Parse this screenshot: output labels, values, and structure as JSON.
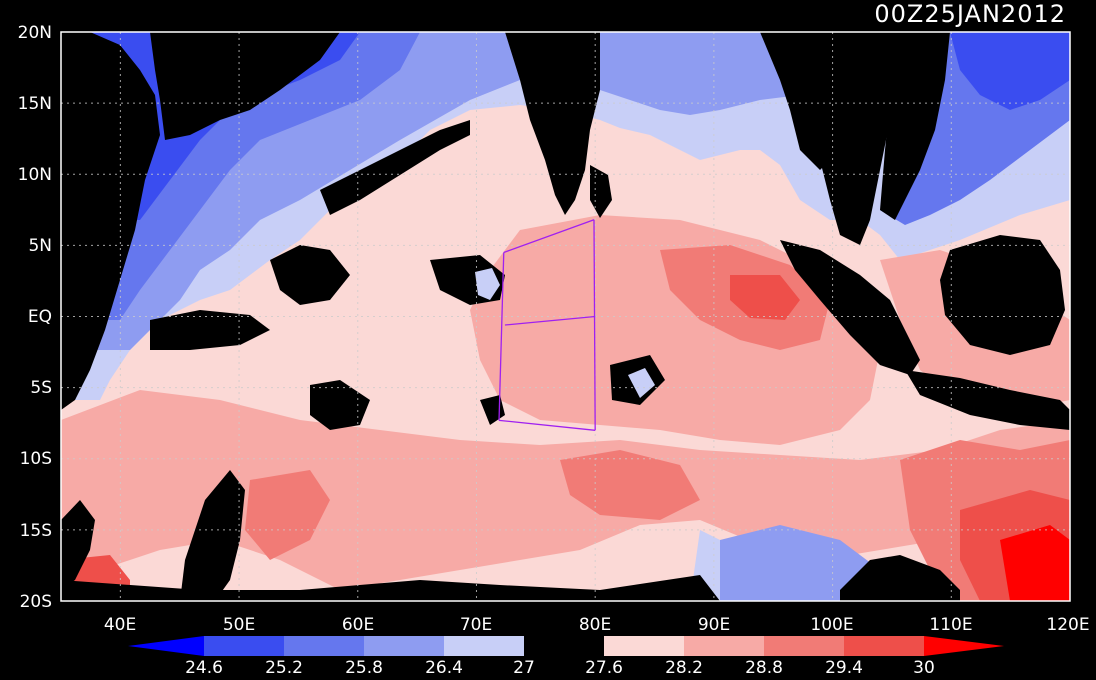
{
  "title": "00Z25JAN2012",
  "lat_labels": [
    "20N",
    "15N",
    "10N",
    "5N",
    "EQ",
    "5S",
    "10S",
    "15S",
    "20S"
  ],
  "lon_labels": [
    "40E",
    "50E",
    "60E",
    "70E",
    "80E",
    "90E",
    "100E",
    "110E",
    "120E"
  ],
  "colorbar": {
    "labels": [
      "24.6",
      "25.2",
      "25.8",
      "26.4",
      "27",
      "27.6",
      "28.2",
      "28.8",
      "29.4",
      "30"
    ],
    "colors": [
      "#0000ff",
      "#3a4df0",
      "#6577ee",
      "#8e9cf1",
      "#c8cff7",
      "#000000",
      "#fbd9d6",
      "#f7aaa6",
      "#f17b76",
      "#ee4f4a",
      "#ff0000"
    ]
  },
  "map": {
    "extent": {
      "lon": [
        35,
        120
      ],
      "lat": [
        -20,
        20
      ]
    },
    "land_color": "#000000",
    "box_color": "#a020f0",
    "box_lines": [
      [
        [
          72.3,
          4.5
        ],
        [
          79.9,
          6.8
        ]
      ],
      [
        [
          72.3,
          4.5
        ],
        [
          71.9,
          -7.3
        ]
      ],
      [
        [
          71.9,
          -7.3
        ],
        [
          80.0,
          -8.0
        ]
      ],
      [
        [
          79.9,
          6.8
        ],
        [
          80.0,
          -8.0
        ]
      ],
      [
        [
          72.4,
          -0.6
        ],
        [
          80.0,
          0.0
        ]
      ]
    ]
  }
}
